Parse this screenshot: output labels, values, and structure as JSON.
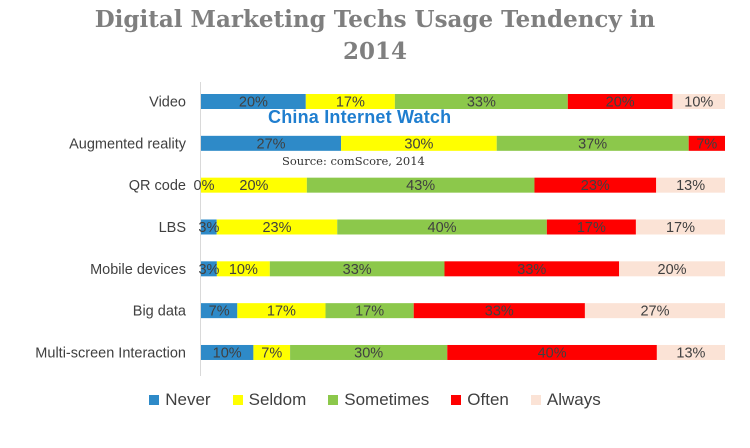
{
  "title_line1": "Digital Marketing Techs Usage Tendency in",
  "title_line2": "2014",
  "watermark": "China Internet Watch",
  "source": "Source: comScore, 2014",
  "chart_data": {
    "type": "bar",
    "orientation": "horizontal-stacked-100",
    "categories": [
      "Video",
      "Augmented reality",
      "QR code",
      "LBS",
      "Mobile devices",
      "Big data",
      "Multi-screen Interaction"
    ],
    "series": [
      {
        "name": "Never",
        "color": "#2e8ac8",
        "values": [
          20,
          27,
          0,
          3,
          3,
          7,
          10
        ],
        "labels": [
          "20%",
          "27%",
          "0%",
          "3%",
          "3%",
          "7%",
          "10%"
        ]
      },
      {
        "name": "Seldom",
        "color": "#ffff00",
        "values": [
          17,
          30,
          20,
          23,
          10,
          17,
          7
        ],
        "labels": [
          "17%",
          "30%",
          "20%",
          "23%",
          "10%",
          "17%",
          "7%"
        ]
      },
      {
        "name": "Sometimes",
        "color": "#8cc84b",
        "values": [
          33,
          37,
          43,
          40,
          33,
          17,
          30
        ],
        "labels": [
          "33%",
          "37%",
          "43%",
          "40%",
          "33%",
          "17%",
          "30%"
        ]
      },
      {
        "name": "Often",
        "color": "#ff0000",
        "values": [
          20,
          7,
          23,
          17,
          33,
          33,
          40
        ],
        "labels": [
          "20%",
          "7%",
          "23%",
          "17%",
          "33%",
          "33%",
          "40%"
        ]
      },
      {
        "name": "Always",
        "color": "#fbe3d6",
        "values": [
          10,
          0,
          13,
          17,
          20,
          27,
          13
        ],
        "labels": [
          "10%",
          "",
          "13%",
          "17%",
          "20%",
          "27%",
          "13%"
        ]
      }
    ],
    "legend_position": "bottom",
    "grid": false
  }
}
